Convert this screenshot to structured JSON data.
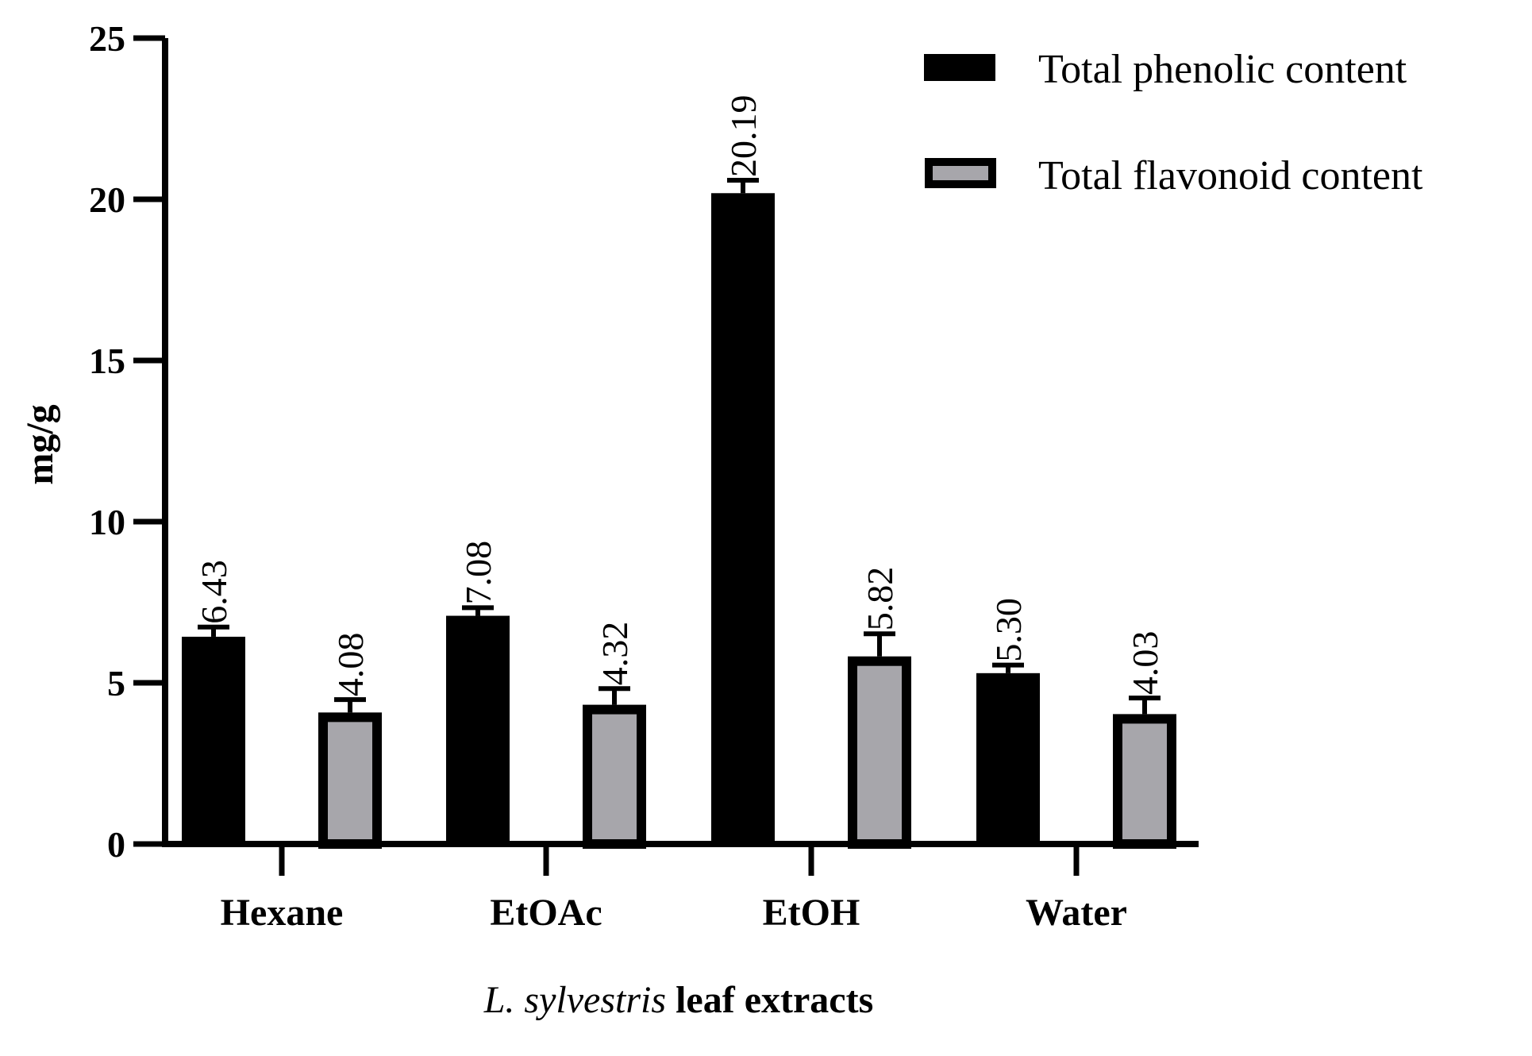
{
  "chart_data": {
    "type": "bar",
    "title": "",
    "categories": [
      "Hexane",
      "EtOAc",
      "EtOH",
      "Water"
    ],
    "series": [
      {
        "name": "Total phenolic content",
        "color": "#000000",
        "values": [
          6.43,
          7.08,
          20.19,
          5.3
        ],
        "labels": [
          "6.43",
          "7.08",
          "20.19",
          "5.30"
        ],
        "errors": [
          0.3,
          0.25,
          0.4,
          0.25
        ]
      },
      {
        "name": "Total flavonoid content",
        "color": "#a7a6ab",
        "values": [
          4.08,
          4.32,
          5.82,
          4.03
        ],
        "labels": [
          "4.08",
          "4.32",
          "5.82",
          "4.03"
        ],
        "errors": [
          0.4,
          0.5,
          0.7,
          0.5
        ]
      }
    ],
    "ylabel": "mg/g",
    "xlabel_italic": "L. sylvestris",
    "xlabel_rest": " leaf extracts",
    "ylim": [
      0,
      25
    ],
    "yticks": [
      "0",
      "5",
      "10",
      "15",
      "20",
      "25"
    ],
    "legend_position": "top-right",
    "grid": false
  }
}
